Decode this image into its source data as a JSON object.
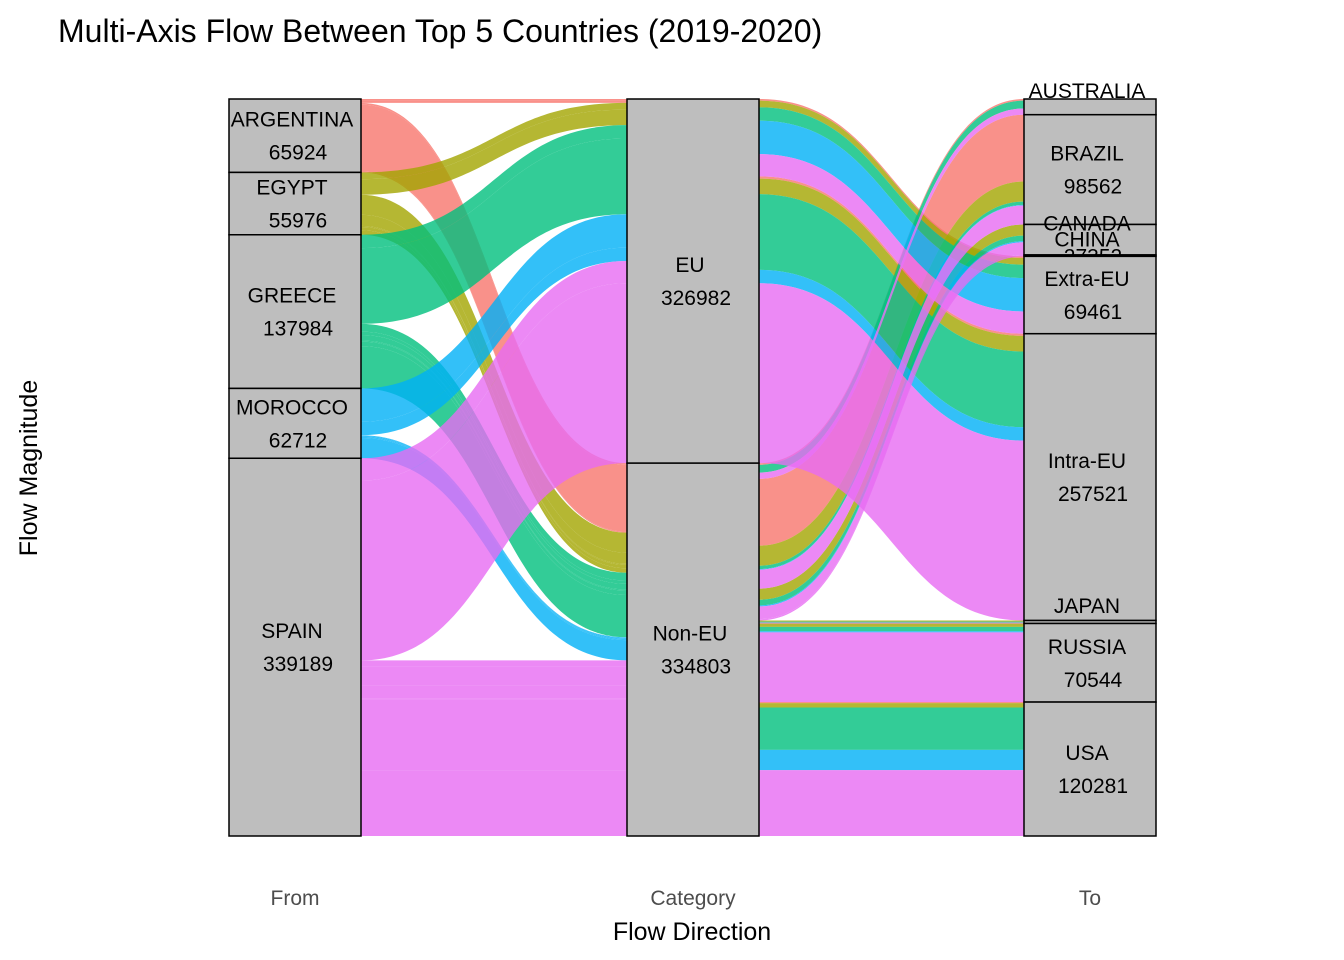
{
  "chart_data": {
    "type": "alluvial",
    "title": "Multi-Axis Flow Between Top 5 Countries (2019-2020)",
    "xlabel": "Flow Direction",
    "ylabel": "Flow Magnitude",
    "axes": [
      "From",
      "Category",
      "To"
    ],
    "strata": {
      "From": [
        {
          "name": "ARGENTINA",
          "value": 65924
        },
        {
          "name": "EGYPT",
          "value": 55976
        },
        {
          "name": "GREECE",
          "value": 137984
        },
        {
          "name": "MOROCCO",
          "value": 62712
        },
        {
          "name": "SPAIN",
          "value": 339189
        }
      ],
      "Category": [
        {
          "name": "EU",
          "value": 326982
        },
        {
          "name": "Non-EU",
          "value": 334803
        }
      ],
      "To": [
        {
          "name": "AUSTRALIA",
          "value": 14099
        },
        {
          "name": "BRAZIL",
          "value": 98562
        },
        {
          "name": "CANADA",
          "value": 27352
        },
        {
          "name": "CHINA",
          "value": 1283
        },
        {
          "name": "Extra-EU",
          "value": 69461
        },
        {
          "name": "Intra-EU",
          "value": 257521
        },
        {
          "name": "JAPAN",
          "value": 2682
        },
        {
          "name": "RUSSIA",
          "value": 70544
        },
        {
          "name": "USA",
          "value": 120281
        }
      ]
    },
    "flows": [
      {
        "from": "ARGENTINA",
        "category": "EU",
        "to": "Intra-EU",
        "value": 2000
      },
      {
        "from": "ARGENTINA",
        "category": "EU",
        "to": "Extra-EU",
        "value": 1500
      },
      {
        "from": "ARGENTINA",
        "category": "Non-EU",
        "to": "BRAZIL",
        "value": 60000
      },
      {
        "from": "ARGENTINA",
        "category": "Non-EU",
        "to": "AUSTRALIA",
        "value": 1500
      },
      {
        "from": "ARGENTINA",
        "category": "Non-EU",
        "to": "USA",
        "value": 924
      },
      {
        "from": "EGYPT",
        "category": "EU",
        "to": "Intra-EU",
        "value": 14000
      },
      {
        "from": "EGYPT",
        "category": "EU",
        "to": "Extra-EU",
        "value": 6000
      },
      {
        "from": "EGYPT",
        "category": "Non-EU",
        "to": "BRAZIL",
        "value": 18000
      },
      {
        "from": "EGYPT",
        "category": "Non-EU",
        "to": "CANADA",
        "value": 10000
      },
      {
        "from": "EGYPT",
        "category": "Non-EU",
        "to": "RUSSIA",
        "value": 3000
      },
      {
        "from": "EGYPT",
        "category": "Non-EU",
        "to": "JAPAN",
        "value": 976
      },
      {
        "from": "EGYPT",
        "category": "Non-EU",
        "to": "USA",
        "value": 4000
      },
      {
        "from": "GREECE",
        "category": "EU",
        "to": "Intra-EU",
        "value": 68000
      },
      {
        "from": "GREECE",
        "category": "EU",
        "to": "Extra-EU",
        "value": 12000
      },
      {
        "from": "GREECE",
        "category": "Non-EU",
        "to": "AUSTRALIA",
        "value": 7000
      },
      {
        "from": "GREECE",
        "category": "Non-EU",
        "to": "BRAZIL",
        "value": 3000
      },
      {
        "from": "GREECE",
        "category": "Non-EU",
        "to": "CANADA",
        "value": 5000
      },
      {
        "from": "GREECE",
        "category": "Non-EU",
        "to": "RUSSIA",
        "value": 4000
      },
      {
        "from": "GREECE",
        "category": "Non-EU",
        "to": "JAPAN",
        "value": 984
      },
      {
        "from": "GREECE",
        "category": "Non-EU",
        "to": "USA",
        "value": 38000
      },
      {
        "from": "MOROCCO",
        "category": "EU",
        "to": "Intra-EU",
        "value": 12000
      },
      {
        "from": "MOROCCO",
        "category": "EU",
        "to": "Extra-EU",
        "value": 30000
      },
      {
        "from": "MOROCCO",
        "category": "Non-EU",
        "to": "BRAZIL",
        "value": 500
      },
      {
        "from": "MOROCCO",
        "category": "Non-EU",
        "to": "CANADA",
        "value": 1000
      },
      {
        "from": "MOROCCO",
        "category": "Non-EU",
        "to": "RUSSIA",
        "value": 1000
      },
      {
        "from": "MOROCCO",
        "category": "Non-EU",
        "to": "USA",
        "value": 18212
      },
      {
        "from": "SPAIN",
        "category": "EU",
        "to": "Intra-EU",
        "value": 161521
      },
      {
        "from": "SPAIN",
        "category": "EU",
        "to": "Extra-EU",
        "value": 19961
      },
      {
        "from": "SPAIN",
        "category": "Non-EU",
        "to": "AUSTRALIA",
        "value": 5599
      },
      {
        "from": "SPAIN",
        "category": "Non-EU",
        "to": "BRAZIL",
        "value": 17062
      },
      {
        "from": "SPAIN",
        "category": "Non-EU",
        "to": "CANADA",
        "value": 11352
      },
      {
        "from": "SPAIN",
        "category": "Non-EU",
        "to": "CHINA",
        "value": 1283
      },
      {
        "from": "SPAIN",
        "category": "Non-EU",
        "to": "JAPAN",
        "value": 722
      },
      {
        "from": "SPAIN",
        "category": "Non-EU",
        "to": "RUSSIA",
        "value": 62544
      },
      {
        "from": "SPAIN",
        "category": "Non-EU",
        "to": "USA",
        "value": 59145
      }
    ],
    "colors": {
      "ARGENTINA": "#F8766D",
      "EGYPT": "#A3A500",
      "GREECE": "#00BF7D",
      "MOROCCO": "#00B0F6",
      "SPAIN": "#E76BF3"
    },
    "stratum_fill": "#BEBEBE"
  }
}
